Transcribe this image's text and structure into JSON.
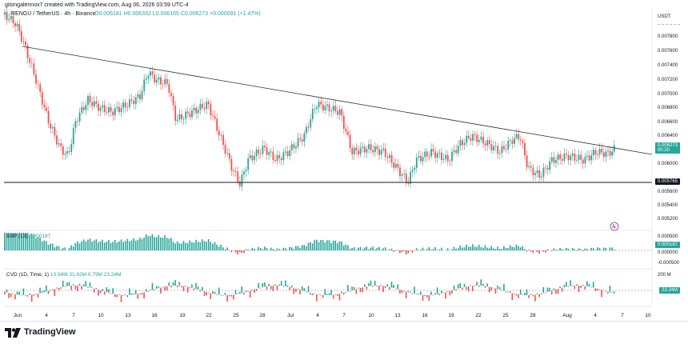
{
  "header": {
    "author_line": "gitongalennox7 created with TradingView.com, Aug 06, 2026 03:59 UTC-4",
    "symbol": "RENGU / TetherUS · 4h · Binance",
    "ohlc": "O0.006181  H0.006332  L0.006155  C0.006273  +0.000091 (+1.47%)"
  },
  "price_axis": {
    "currency": "USDT",
    "labels": [
      "0.007800",
      "0.007600",
      "0.007400",
      "0.007200",
      "0.007000",
      "0.006800",
      "0.006600",
      "0.006400",
      "0.006000",
      "0.005600",
      "0.005400",
      "0.005200"
    ],
    "last_price": "0.006273",
    "countdown": "00:20",
    "support_value": "0.005765"
  },
  "bbp": {
    "legend": "BBP (13)",
    "value": "0.000187",
    "axis_labels": [
      "0.000500",
      "0.000000",
      "-0.000500"
    ],
    "tag": "0.000187"
  },
  "cvd": {
    "legend": "CVD (1D, Time, 1)",
    "values": [
      "13.54M",
      "31.62M",
      "9.79M",
      "23.24M"
    ],
    "axis_top": "200 M",
    "tag": "23.24M"
  },
  "time_axis": {
    "labels": [
      "Jun",
      "4",
      "7",
      "10",
      "13",
      "16",
      "19",
      "22",
      "25",
      "28",
      "Jul",
      "4",
      "7",
      "10",
      "13",
      "16",
      "19",
      "22",
      "25",
      "28",
      "Aug",
      "4",
      "7",
      "10"
    ]
  },
  "footer": {
    "brand": "TradingView"
  },
  "colors": {
    "up": "#26a69a",
    "down": "#ef5350",
    "trend": "#2a2e39",
    "bg": "#ffffff"
  }
}
